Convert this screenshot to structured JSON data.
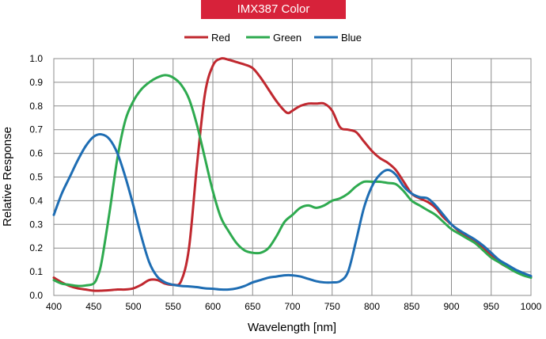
{
  "chart_data": {
    "type": "line",
    "title": "IMX387 Color",
    "xlabel": "Wavelength [nm]",
    "ylabel": "Relative Response",
    "xlim": [
      400,
      1000
    ],
    "ylim": [
      0,
      1.0
    ],
    "x_ticks": [
      "400",
      "450",
      "500",
      "550",
      "600",
      "650",
      "700",
      "750",
      "800",
      "850",
      "900",
      "950",
      "1000"
    ],
    "y_ticks": [
      "0.0",
      "0.1",
      "0.2",
      "0.3",
      "0.4",
      "0.5",
      "0.6",
      "0.7",
      "0.8",
      "0.9",
      "1.0"
    ],
    "grid": true,
    "legend_position": "top-center",
    "series": [
      {
        "name": "Red",
        "color": "#c0282f",
        "points": [
          [
            400,
            0.075
          ],
          [
            410,
            0.055
          ],
          [
            420,
            0.04
          ],
          [
            430,
            0.03
          ],
          [
            440,
            0.025
          ],
          [
            450,
            0.02
          ],
          [
            460,
            0.02
          ],
          [
            470,
            0.022
          ],
          [
            480,
            0.025
          ],
          [
            490,
            0.025
          ],
          [
            500,
            0.03
          ],
          [
            510,
            0.045
          ],
          [
            520,
            0.065
          ],
          [
            530,
            0.065
          ],
          [
            540,
            0.05
          ],
          [
            550,
            0.045
          ],
          [
            560,
            0.06
          ],
          [
            570,
            0.2
          ],
          [
            580,
            0.55
          ],
          [
            590,
            0.85
          ],
          [
            600,
            0.97
          ],
          [
            610,
            1.0
          ],
          [
            620,
            0.995
          ],
          [
            630,
            0.985
          ],
          [
            640,
            0.975
          ],
          [
            650,
            0.96
          ],
          [
            660,
            0.92
          ],
          [
            670,
            0.87
          ],
          [
            680,
            0.82
          ],
          [
            690,
            0.78
          ],
          [
            695,
            0.77
          ],
          [
            700,
            0.78
          ],
          [
            710,
            0.8
          ],
          [
            720,
            0.81
          ],
          [
            730,
            0.81
          ],
          [
            740,
            0.81
          ],
          [
            750,
            0.78
          ],
          [
            760,
            0.71
          ],
          [
            770,
            0.7
          ],
          [
            780,
            0.69
          ],
          [
            790,
            0.65
          ],
          [
            800,
            0.61
          ],
          [
            810,
            0.58
          ],
          [
            820,
            0.56
          ],
          [
            830,
            0.53
          ],
          [
            840,
            0.48
          ],
          [
            850,
            0.43
          ],
          [
            860,
            0.41
          ],
          [
            870,
            0.395
          ],
          [
            880,
            0.37
          ],
          [
            890,
            0.33
          ],
          [
            900,
            0.3
          ],
          [
            910,
            0.27
          ],
          [
            920,
            0.25
          ],
          [
            930,
            0.23
          ],
          [
            940,
            0.2
          ],
          [
            950,
            0.17
          ],
          [
            960,
            0.14
          ],
          [
            970,
            0.12
          ],
          [
            980,
            0.105
          ],
          [
            990,
            0.09
          ],
          [
            1000,
            0.08
          ]
        ]
      },
      {
        "name": "Green",
        "color": "#2eaa4f",
        "points": [
          [
            400,
            0.065
          ],
          [
            410,
            0.05
          ],
          [
            420,
            0.045
          ],
          [
            430,
            0.04
          ],
          [
            440,
            0.042
          ],
          [
            450,
            0.05
          ],
          [
            455,
            0.08
          ],
          [
            460,
            0.14
          ],
          [
            470,
            0.35
          ],
          [
            480,
            0.58
          ],
          [
            490,
            0.74
          ],
          [
            500,
            0.82
          ],
          [
            510,
            0.87
          ],
          [
            520,
            0.9
          ],
          [
            530,
            0.92
          ],
          [
            540,
            0.93
          ],
          [
            550,
            0.92
          ],
          [
            560,
            0.89
          ],
          [
            570,
            0.83
          ],
          [
            580,
            0.72
          ],
          [
            590,
            0.58
          ],
          [
            600,
            0.44
          ],
          [
            610,
            0.33
          ],
          [
            620,
            0.27
          ],
          [
            630,
            0.22
          ],
          [
            640,
            0.19
          ],
          [
            650,
            0.18
          ],
          [
            660,
            0.18
          ],
          [
            670,
            0.2
          ],
          [
            680,
            0.25
          ],
          [
            690,
            0.31
          ],
          [
            700,
            0.34
          ],
          [
            710,
            0.37
          ],
          [
            720,
            0.38
          ],
          [
            730,
            0.37
          ],
          [
            740,
            0.38
          ],
          [
            750,
            0.4
          ],
          [
            760,
            0.41
          ],
          [
            770,
            0.43
          ],
          [
            780,
            0.46
          ],
          [
            790,
            0.48
          ],
          [
            800,
            0.48
          ],
          [
            810,
            0.48
          ],
          [
            820,
            0.475
          ],
          [
            830,
            0.47
          ],
          [
            840,
            0.44
          ],
          [
            850,
            0.4
          ],
          [
            860,
            0.38
          ],
          [
            870,
            0.36
          ],
          [
            880,
            0.34
          ],
          [
            890,
            0.31
          ],
          [
            900,
            0.28
          ],
          [
            910,
            0.26
          ],
          [
            920,
            0.24
          ],
          [
            930,
            0.22
          ],
          [
            940,
            0.19
          ],
          [
            950,
            0.16
          ],
          [
            960,
            0.14
          ],
          [
            970,
            0.12
          ],
          [
            980,
            0.1
          ],
          [
            990,
            0.085
          ],
          [
            1000,
            0.075
          ]
        ]
      },
      {
        "name": "Blue",
        "color": "#1e6db3",
        "points": [
          [
            400,
            0.34
          ],
          [
            410,
            0.43
          ],
          [
            420,
            0.5
          ],
          [
            430,
            0.57
          ],
          [
            440,
            0.63
          ],
          [
            450,
            0.67
          ],
          [
            460,
            0.68
          ],
          [
            470,
            0.66
          ],
          [
            480,
            0.6
          ],
          [
            490,
            0.5
          ],
          [
            500,
            0.38
          ],
          [
            510,
            0.25
          ],
          [
            520,
            0.14
          ],
          [
            530,
            0.08
          ],
          [
            540,
            0.055
          ],
          [
            550,
            0.045
          ],
          [
            560,
            0.04
          ],
          [
            570,
            0.038
          ],
          [
            580,
            0.035
          ],
          [
            590,
            0.03
          ],
          [
            600,
            0.028
          ],
          [
            610,
            0.025
          ],
          [
            620,
            0.025
          ],
          [
            630,
            0.03
          ],
          [
            640,
            0.04
          ],
          [
            650,
            0.055
          ],
          [
            660,
            0.065
          ],
          [
            670,
            0.075
          ],
          [
            680,
            0.08
          ],
          [
            690,
            0.085
          ],
          [
            700,
            0.085
          ],
          [
            710,
            0.08
          ],
          [
            720,
            0.07
          ],
          [
            730,
            0.06
          ],
          [
            740,
            0.055
          ],
          [
            750,
            0.055
          ],
          [
            760,
            0.06
          ],
          [
            770,
            0.1
          ],
          [
            780,
            0.23
          ],
          [
            790,
            0.37
          ],
          [
            800,
            0.46
          ],
          [
            810,
            0.51
          ],
          [
            820,
            0.53
          ],
          [
            830,
            0.51
          ],
          [
            840,
            0.46
          ],
          [
            850,
            0.43
          ],
          [
            860,
            0.415
          ],
          [
            870,
            0.41
          ],
          [
            880,
            0.38
          ],
          [
            890,
            0.34
          ],
          [
            900,
            0.3
          ],
          [
            910,
            0.275
          ],
          [
            920,
            0.255
          ],
          [
            930,
            0.235
          ],
          [
            940,
            0.21
          ],
          [
            950,
            0.18
          ],
          [
            960,
            0.15
          ],
          [
            970,
            0.13
          ],
          [
            980,
            0.11
          ],
          [
            990,
            0.095
          ],
          [
            1000,
            0.082
          ]
        ]
      }
    ]
  }
}
